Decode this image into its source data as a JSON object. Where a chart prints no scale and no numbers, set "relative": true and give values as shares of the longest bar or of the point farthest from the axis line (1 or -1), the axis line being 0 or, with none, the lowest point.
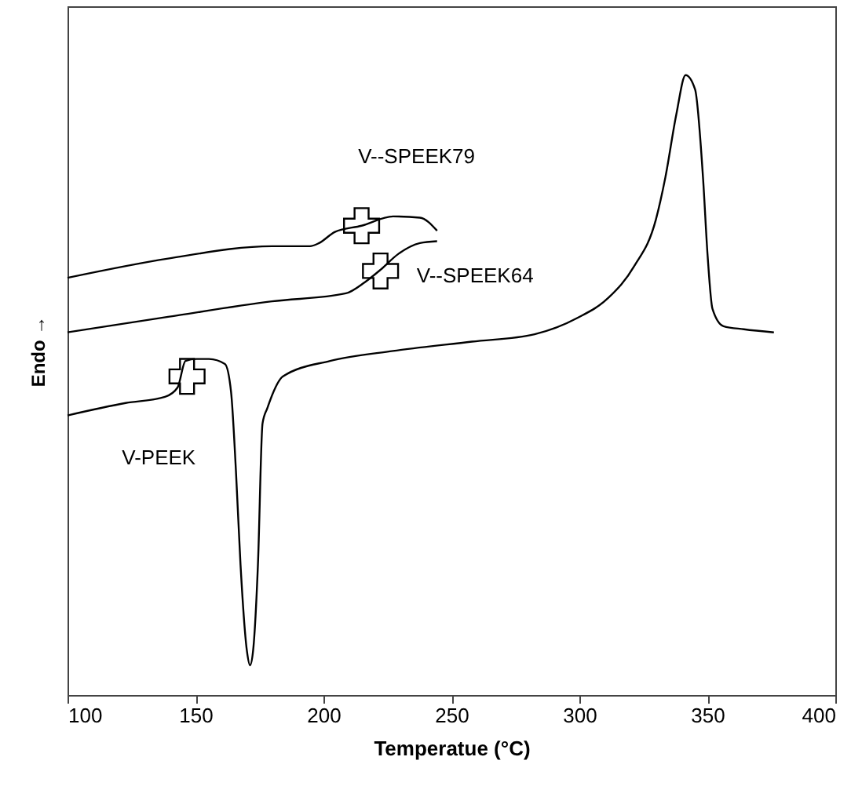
{
  "chart_data": {
    "type": "line",
    "relative": true,
    "xlabel": "Temperatue (°C)",
    "ylabel": "Endo →",
    "xlim": [
      100,
      400
    ],
    "xticks": [
      100,
      150,
      200,
      250,
      300,
      350,
      400
    ],
    "grid": false,
    "series": [
      {
        "name": "V--SPEEK79",
        "color": "#000000",
        "x": [
          100,
          139.3,
          179.9,
          194.7,
          198.3,
          204.5,
          214.9,
          227.2,
          237.7,
          244.4
        ],
        "values": [
          0.673,
          0.704,
          0.724,
          0.724,
          0.729,
          0.747,
          0.757,
          0.772,
          0.77,
          0.749
        ]
      },
      {
        "name": "V--SPEEK64",
        "color": "#000000",
        "x": [
          100,
          139.3,
          179.9,
          208.8,
          216.2,
          222.3,
          229.1,
          237.7,
          244.4
        ],
        "values": [
          0.585,
          0.61,
          0.635,
          0.648,
          0.666,
          0.686,
          0.711,
          0.729,
          0.732
        ]
      },
      {
        "name": "V-PEEK",
        "color": "#000000",
        "x": [
          100,
          122.7,
          138.1,
          143.0,
          146.1,
          150.4,
          155.3,
          161.5,
          163.9,
          165.8,
          167.6,
          170.1,
          171.3,
          172.5,
          174.4,
          176.2,
          178.1,
          184.2,
          202.6,
          227.2,
          258,
          282.5,
          299.1,
          311.4,
          321.3,
          329.9,
          333.6,
          337.9,
          341.5,
          345.2,
          348.3,
          350.1,
          352.0,
          356.3,
          364.3,
          376.0
        ],
        "values": [
          0.451,
          0.471,
          0.481,
          0.496,
          0.539,
          0.542,
          0.542,
          0.534,
          0.489,
          0.362,
          0.21,
          0.071,
          0.048,
          0.071,
          0.21,
          0.438,
          0.463,
          0.514,
          0.539,
          0.555,
          0.57,
          0.582,
          0.608,
          0.641,
          0.691,
          0.767,
          0.835,
          0.937,
          1.0,
          0.977,
          0.835,
          0.709,
          0.623,
          0.595,
          0.59,
          0.585
        ]
      },
      {
        "type": "scatter",
        "marker": "cross",
        "color": "#000000",
        "x": [
          146.7,
          214.9,
          222.3
        ],
        "values": [
          0.514,
          0.757,
          0.684
        ]
      }
    ]
  }
}
